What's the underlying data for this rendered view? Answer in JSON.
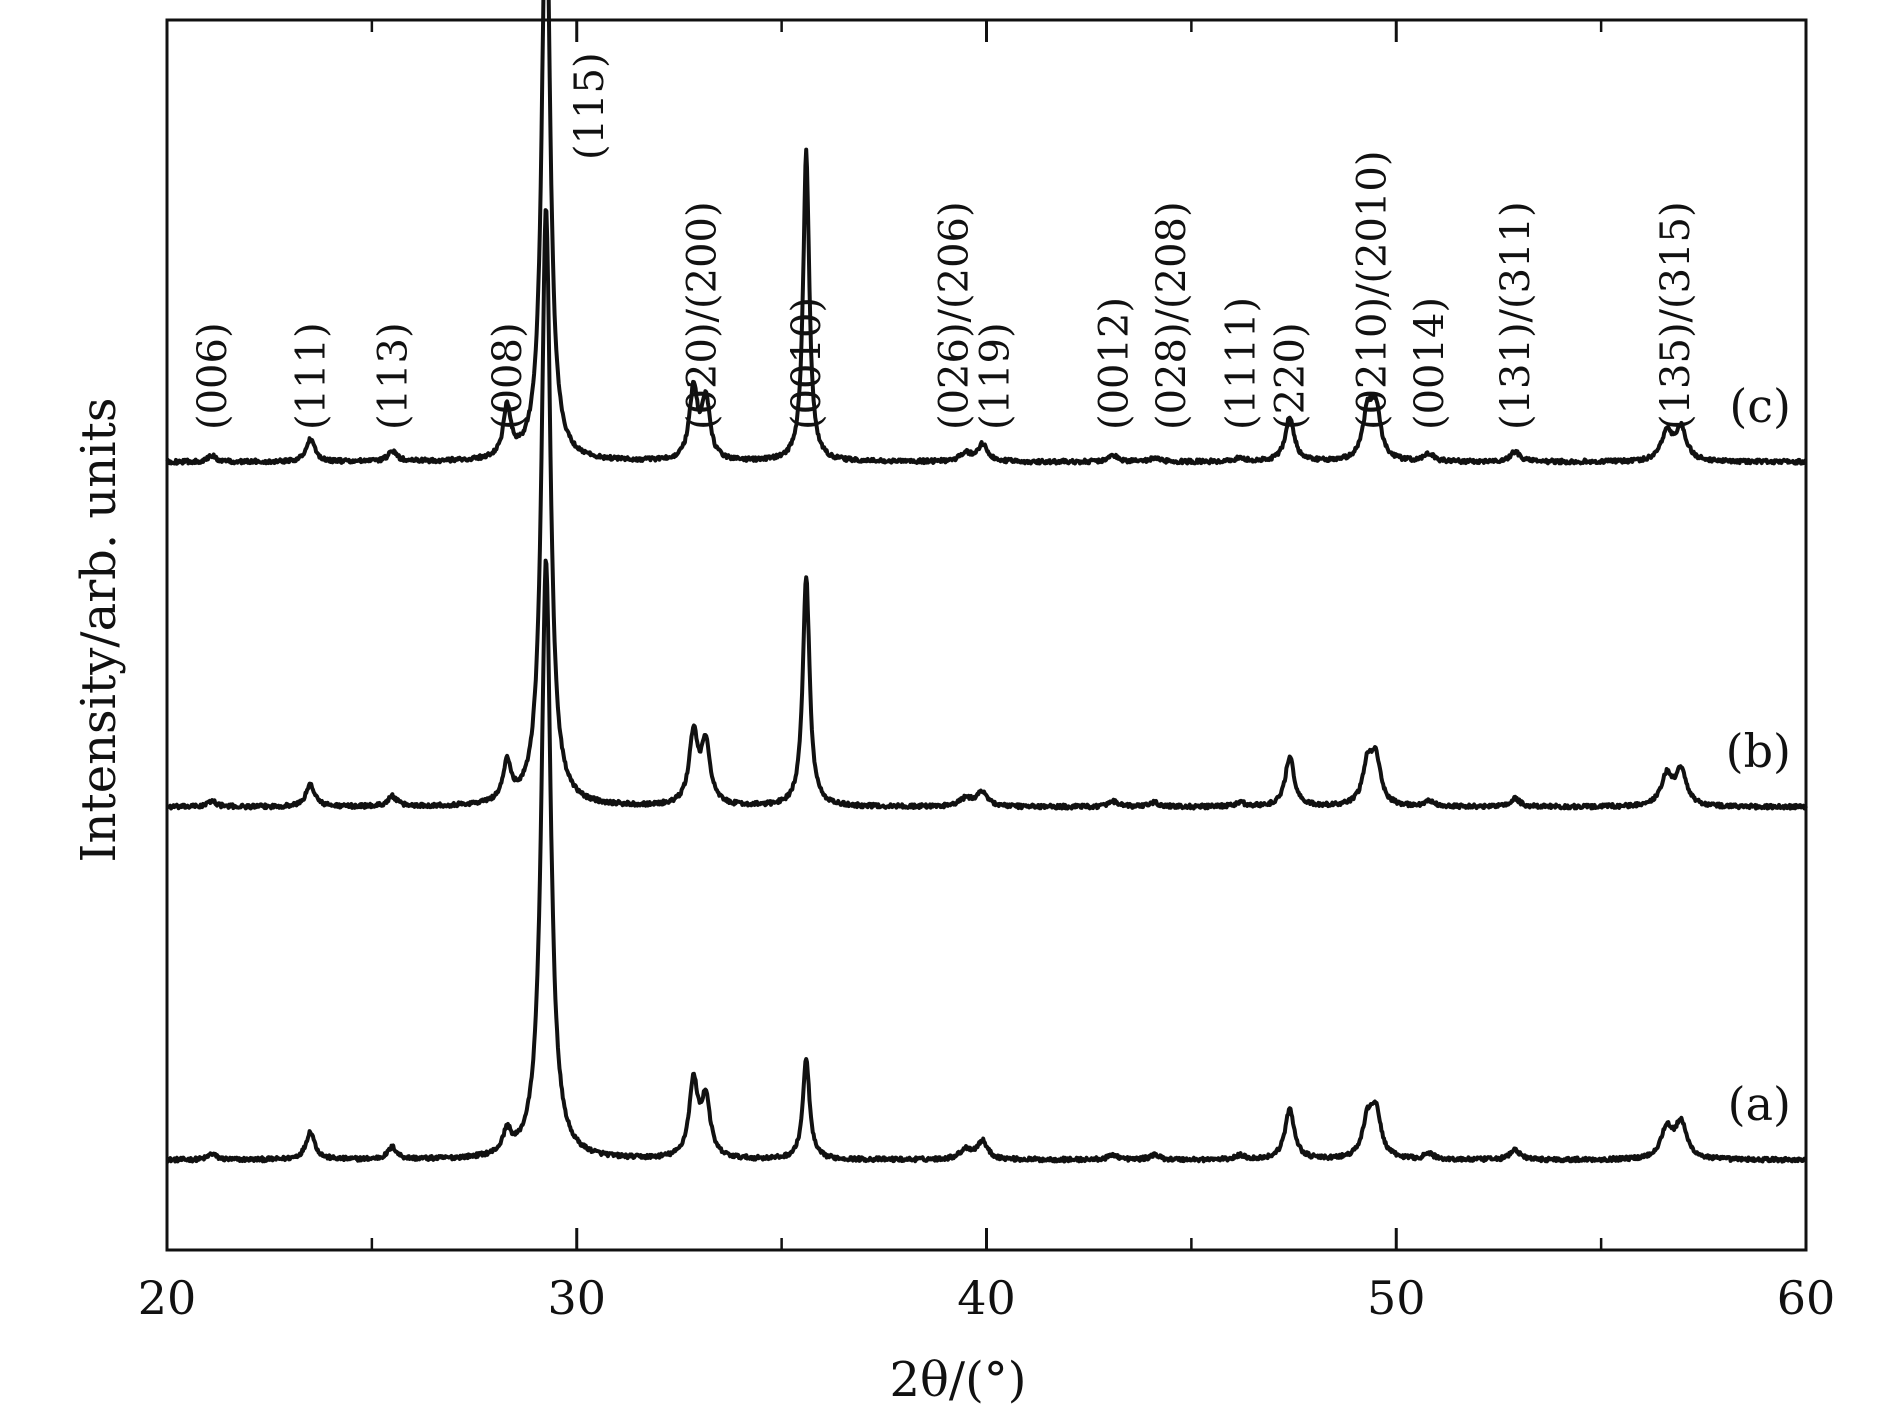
{
  "chart_data": {
    "type": "line",
    "xlabel": "2θ/(°)",
    "ylabel": "Intensity/arb. units",
    "xlim": [
      20,
      60
    ],
    "x_ticks": [
      20,
      30,
      40,
      50,
      60
    ],
    "x_ticks_minor": [
      25,
      35,
      45,
      55
    ],
    "y_ticks": [],
    "grid": false,
    "legend": "none (series labeled at right end of each pattern)",
    "series": [
      {
        "name": "(a)",
        "peaks": [
          {
            "x": 21.1,
            "h": 0.006,
            "w": 0.12
          },
          {
            "x": 23.5,
            "h": 0.028,
            "w": 0.13
          },
          {
            "x": 25.5,
            "h": 0.012,
            "w": 0.13
          },
          {
            "x": 28.3,
            "h": 0.022,
            "w": 0.12
          },
          {
            "x": 29.25,
            "h": 0.6,
            "w": 0.14
          },
          {
            "x": 32.85,
            "h": 0.075,
            "w": 0.13
          },
          {
            "x": 33.15,
            "h": 0.058,
            "w": 0.13
          },
          {
            "x": 35.6,
            "h": 0.1,
            "w": 0.1
          },
          {
            "x": 39.5,
            "h": 0.01,
            "w": 0.18
          },
          {
            "x": 39.9,
            "h": 0.018,
            "w": 0.15
          },
          {
            "x": 43.1,
            "h": 0.005,
            "w": 0.14
          },
          {
            "x": 44.1,
            "h": 0.005,
            "w": 0.14
          },
          {
            "x": 46.2,
            "h": 0.004,
            "w": 0.14
          },
          {
            "x": 47.4,
            "h": 0.05,
            "w": 0.14
          },
          {
            "x": 49.3,
            "h": 0.035,
            "w": 0.15
          },
          {
            "x": 49.5,
            "h": 0.045,
            "w": 0.15
          },
          {
            "x": 50.8,
            "h": 0.006,
            "w": 0.13
          },
          {
            "x": 52.9,
            "h": 0.01,
            "w": 0.14
          },
          {
            "x": 56.6,
            "h": 0.03,
            "w": 0.17
          },
          {
            "x": 56.95,
            "h": 0.035,
            "w": 0.17
          }
        ]
      },
      {
        "name": "(b)",
        "peaks": [
          {
            "x": 21.1,
            "h": 0.006,
            "w": 0.12
          },
          {
            "x": 23.5,
            "h": 0.022,
            "w": 0.13
          },
          {
            "x": 25.5,
            "h": 0.01,
            "w": 0.13
          },
          {
            "x": 28.3,
            "h": 0.038,
            "w": 0.12
          },
          {
            "x": 29.25,
            "h": 0.6,
            "w": 0.13
          },
          {
            "x": 32.85,
            "h": 0.07,
            "w": 0.13
          },
          {
            "x": 33.15,
            "h": 0.06,
            "w": 0.13
          },
          {
            "x": 35.6,
            "h": 0.23,
            "w": 0.1
          },
          {
            "x": 39.5,
            "h": 0.008,
            "w": 0.18
          },
          {
            "x": 39.9,
            "h": 0.015,
            "w": 0.15
          },
          {
            "x": 43.1,
            "h": 0.005,
            "w": 0.14
          },
          {
            "x": 44.1,
            "h": 0.004,
            "w": 0.14
          },
          {
            "x": 46.2,
            "h": 0.004,
            "w": 0.14
          },
          {
            "x": 47.4,
            "h": 0.05,
            "w": 0.13
          },
          {
            "x": 49.3,
            "h": 0.04,
            "w": 0.14
          },
          {
            "x": 49.5,
            "h": 0.045,
            "w": 0.14
          },
          {
            "x": 50.8,
            "h": 0.006,
            "w": 0.13
          },
          {
            "x": 52.9,
            "h": 0.008,
            "w": 0.14
          },
          {
            "x": 56.6,
            "h": 0.03,
            "w": 0.16
          },
          {
            "x": 56.95,
            "h": 0.035,
            "w": 0.16
          }
        ]
      },
      {
        "name": "(c)",
        "peaks": [
          {
            "x": 21.1,
            "h": 0.006,
            "w": 0.12
          },
          {
            "x": 23.5,
            "h": 0.022,
            "w": 0.13
          },
          {
            "x": 25.5,
            "h": 0.01,
            "w": 0.13
          },
          {
            "x": 28.3,
            "h": 0.05,
            "w": 0.11
          },
          {
            "x": 29.25,
            "h": 0.6,
            "w": 0.12
          },
          {
            "x": 32.85,
            "h": 0.07,
            "w": 0.12
          },
          {
            "x": 33.15,
            "h": 0.06,
            "w": 0.12
          },
          {
            "x": 35.6,
            "h": 0.31,
            "w": 0.09
          },
          {
            "x": 39.5,
            "h": 0.008,
            "w": 0.17
          },
          {
            "x": 39.9,
            "h": 0.017,
            "w": 0.14
          },
          {
            "x": 43.1,
            "h": 0.006,
            "w": 0.14
          },
          {
            "x": 44.1,
            "h": 0.004,
            "w": 0.14
          },
          {
            "x": 46.2,
            "h": 0.004,
            "w": 0.14
          },
          {
            "x": 47.4,
            "h": 0.045,
            "w": 0.13
          },
          {
            "x": 49.3,
            "h": 0.045,
            "w": 0.14
          },
          {
            "x": 49.5,
            "h": 0.05,
            "w": 0.14
          },
          {
            "x": 50.8,
            "h": 0.008,
            "w": 0.13
          },
          {
            "x": 52.9,
            "h": 0.01,
            "w": 0.14
          },
          {
            "x": 56.6,
            "h": 0.028,
            "w": 0.16
          },
          {
            "x": 56.95,
            "h": 0.033,
            "w": 0.16
          }
        ]
      }
    ],
    "peak_labels": [
      {
        "text": "(006)",
        "x": 21.1
      },
      {
        "text": "(111)",
        "x": 23.5
      },
      {
        "text": "(113)",
        "x": 25.5
      },
      {
        "text": "(008)",
        "x": 28.3
      },
      {
        "text": "(115)",
        "x": 30.3
      },
      {
        "text": "(020)/(200)",
        "x": 33.05
      },
      {
        "text": "(0010)",
        "x": 35.6
      },
      {
        "text": "(026)/(206)",
        "x": 39.2
      },
      {
        "text": "(119)",
        "x": 40.2
      },
      {
        "text": "(0012)",
        "x": 43.1
      },
      {
        "text": "(028)/(208)",
        "x": 44.5
      },
      {
        "text": "(1111)",
        "x": 46.2
      },
      {
        "text": "(220)",
        "x": 47.4
      },
      {
        "text": "(0210)/(2010)",
        "x": 49.4
      },
      {
        "text": "(0014)",
        "x": 50.8
      },
      {
        "text": "(131)/(311)",
        "x": 52.9
      },
      {
        "text": "(135)/(315)",
        "x": 56.8
      }
    ]
  }
}
